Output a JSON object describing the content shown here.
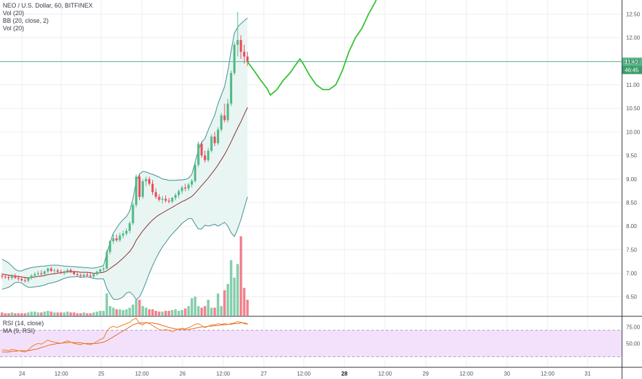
{
  "header": {
    "symbol_line": "NEO / U.S. Dollar, 60, BITFINEX",
    "indicators": [
      "Vol (20)",
      "BB (20, close, 2)",
      "Vol (20)"
    ]
  },
  "rsi_legend": [
    "RSI (14, close)",
    "MA (9, RSI)"
  ],
  "price_label": {
    "value": "11.49",
    "countdown": "46:45"
  },
  "colors": {
    "up": "#53b987",
    "down": "#eb4d5c",
    "bb": "#3d8f8f",
    "bb_fill": "#e8f5f3",
    "basis": "#8b2c2c",
    "projection": "#2fc22f",
    "price_line": "#53b987",
    "rsi": "#f07c1a",
    "rsi_ma": "#e2682b",
    "rsi_band": "#f3e1fb",
    "grid": "#eceef2"
  },
  "chart_data": {
    "type": "candlestick",
    "price_axis": {
      "ticks": [
        "12.50",
        "12.00",
        "11.50",
        "11.00",
        "10.50",
        "10.00",
        "9.50",
        "9.00",
        "8.50",
        "8.00",
        "7.50",
        "7.00",
        "6.50"
      ],
      "range": [
        6.1,
        12.8
      ]
    },
    "rsi_axis": {
      "ticks": [
        "75.00",
        "50.00"
      ],
      "band": [
        30,
        70
      ],
      "range": [
        15,
        90
      ]
    },
    "x_axis": {
      "labels": [
        "24",
        "12:00",
        "25",
        "12:00",
        "26",
        "12:00",
        "27",
        "12:00",
        "28",
        "12:00",
        "29",
        "12:00",
        "30",
        "12:00",
        "31"
      ],
      "bold": [
        "28"
      ]
    },
    "candles": [
      {
        "o": 6.95,
        "h": 7.0,
        "l": 6.88,
        "c": 6.93
      },
      {
        "o": 6.93,
        "h": 6.98,
        "l": 6.88,
        "c": 6.92
      },
      {
        "o": 6.92,
        "h": 6.97,
        "l": 6.85,
        "c": 6.9
      },
      {
        "o": 6.9,
        "h": 6.98,
        "l": 6.86,
        "c": 6.95
      },
      {
        "o": 6.95,
        "h": 6.99,
        "l": 6.88,
        "c": 6.9
      },
      {
        "o": 6.9,
        "h": 6.95,
        "l": 6.84,
        "c": 6.88
      },
      {
        "o": 6.88,
        "h": 6.93,
        "l": 6.82,
        "c": 6.85
      },
      {
        "o": 6.85,
        "h": 6.9,
        "l": 6.8,
        "c": 6.84
      },
      {
        "o": 6.84,
        "h": 6.92,
        "l": 6.8,
        "c": 6.9
      },
      {
        "o": 6.9,
        "h": 6.98,
        "l": 6.86,
        "c": 6.95
      },
      {
        "o": 6.95,
        "h": 7.02,
        "l": 6.9,
        "c": 6.98
      },
      {
        "o": 6.98,
        "h": 7.05,
        "l": 6.92,
        "c": 7.0
      },
      {
        "o": 7.0,
        "h": 7.06,
        "l": 6.95,
        "c": 6.98
      },
      {
        "o": 6.98,
        "h": 7.06,
        "l": 6.94,
        "c": 7.04
      },
      {
        "o": 7.04,
        "h": 7.12,
        "l": 7.0,
        "c": 7.1
      },
      {
        "o": 7.1,
        "h": 7.14,
        "l": 7.02,
        "c": 7.05
      },
      {
        "o": 7.05,
        "h": 7.1,
        "l": 7.0,
        "c": 7.06
      },
      {
        "o": 7.06,
        "h": 7.1,
        "l": 7.0,
        "c": 7.03
      },
      {
        "o": 7.03,
        "h": 7.08,
        "l": 6.98,
        "c": 7.0
      },
      {
        "o": 7.0,
        "h": 7.06,
        "l": 6.96,
        "c": 7.04
      },
      {
        "o": 7.04,
        "h": 7.1,
        "l": 7.0,
        "c": 7.07
      },
      {
        "o": 7.07,
        "h": 7.1,
        "l": 7.0,
        "c": 7.02
      },
      {
        "o": 7.02,
        "h": 7.06,
        "l": 6.96,
        "c": 6.98
      },
      {
        "o": 6.98,
        "h": 7.03,
        "l": 6.93,
        "c": 6.96
      },
      {
        "o": 6.96,
        "h": 7.0,
        "l": 6.9,
        "c": 6.94
      },
      {
        "o": 6.94,
        "h": 7.0,
        "l": 6.9,
        "c": 6.97
      },
      {
        "o": 6.97,
        "h": 7.02,
        "l": 6.93,
        "c": 6.95
      },
      {
        "o": 6.95,
        "h": 7.0,
        "l": 6.9,
        "c": 6.93
      },
      {
        "o": 6.93,
        "h": 7.0,
        "l": 6.9,
        "c": 6.98
      },
      {
        "o": 6.98,
        "h": 7.06,
        "l": 6.95,
        "c": 7.03
      },
      {
        "o": 7.03,
        "h": 7.1,
        "l": 7.0,
        "c": 7.08
      },
      {
        "o": 7.08,
        "h": 7.14,
        "l": 7.04,
        "c": 7.1
      },
      {
        "o": 7.1,
        "h": 7.5,
        "l": 7.08,
        "c": 7.45
      },
      {
        "o": 7.45,
        "h": 7.7,
        "l": 7.4,
        "c": 7.68
      },
      {
        "o": 7.68,
        "h": 7.82,
        "l": 7.62,
        "c": 7.74
      },
      {
        "o": 7.74,
        "h": 7.82,
        "l": 7.66,
        "c": 7.7
      },
      {
        "o": 7.7,
        "h": 7.86,
        "l": 7.66,
        "c": 7.8
      },
      {
        "o": 7.8,
        "h": 7.9,
        "l": 7.74,
        "c": 7.84
      },
      {
        "o": 7.84,
        "h": 7.95,
        "l": 7.8,
        "c": 7.9
      },
      {
        "o": 7.9,
        "h": 8.1,
        "l": 7.85,
        "c": 8.06
      },
      {
        "o": 8.06,
        "h": 8.5,
        "l": 8.02,
        "c": 8.45
      },
      {
        "o": 8.45,
        "h": 9.1,
        "l": 8.4,
        "c": 9.05
      },
      {
        "o": 9.05,
        "h": 9.12,
        "l": 8.55,
        "c": 8.62
      },
      {
        "o": 8.62,
        "h": 9.0,
        "l": 8.58,
        "c": 8.95
      },
      {
        "o": 8.95,
        "h": 9.05,
        "l": 8.85,
        "c": 9.0
      },
      {
        "o": 9.0,
        "h": 9.05,
        "l": 8.86,
        "c": 8.9
      },
      {
        "o": 8.9,
        "h": 8.98,
        "l": 8.66,
        "c": 8.72
      },
      {
        "o": 8.72,
        "h": 8.8,
        "l": 8.58,
        "c": 8.62
      },
      {
        "o": 8.62,
        "h": 8.68,
        "l": 8.52,
        "c": 8.56
      },
      {
        "o": 8.56,
        "h": 8.64,
        "l": 8.48,
        "c": 8.58
      },
      {
        "o": 8.58,
        "h": 8.65,
        "l": 8.5,
        "c": 8.54
      },
      {
        "o": 8.54,
        "h": 8.6,
        "l": 8.48,
        "c": 8.52
      },
      {
        "o": 8.52,
        "h": 8.62,
        "l": 8.48,
        "c": 8.6
      },
      {
        "o": 8.6,
        "h": 8.7,
        "l": 8.55,
        "c": 8.66
      },
      {
        "o": 8.66,
        "h": 8.78,
        "l": 8.6,
        "c": 8.74
      },
      {
        "o": 8.74,
        "h": 8.86,
        "l": 8.68,
        "c": 8.82
      },
      {
        "o": 8.82,
        "h": 8.9,
        "l": 8.74,
        "c": 8.8
      },
      {
        "o": 8.8,
        "h": 8.92,
        "l": 8.75,
        "c": 8.88
      },
      {
        "o": 8.88,
        "h": 9.0,
        "l": 8.82,
        "c": 8.96
      },
      {
        "o": 8.96,
        "h": 9.35,
        "l": 8.92,
        "c": 9.3
      },
      {
        "o": 9.3,
        "h": 9.8,
        "l": 9.25,
        "c": 9.75
      },
      {
        "o": 9.75,
        "h": 9.8,
        "l": 9.45,
        "c": 9.5
      },
      {
        "o": 9.5,
        "h": 9.6,
        "l": 9.35,
        "c": 9.4
      },
      {
        "o": 9.4,
        "h": 9.66,
        "l": 9.36,
        "c": 9.6
      },
      {
        "o": 9.6,
        "h": 9.95,
        "l": 9.56,
        "c": 9.9
      },
      {
        "o": 9.9,
        "h": 10.0,
        "l": 9.7,
        "c": 9.76
      },
      {
        "o": 9.76,
        "h": 10.1,
        "l": 9.72,
        "c": 10.05
      },
      {
        "o": 10.05,
        "h": 10.4,
        "l": 10.0,
        "c": 10.35
      },
      {
        "o": 10.35,
        "h": 10.6,
        "l": 10.2,
        "c": 10.25
      },
      {
        "o": 10.25,
        "h": 10.7,
        "l": 10.2,
        "c": 10.6
      },
      {
        "o": 10.6,
        "h": 11.3,
        "l": 10.55,
        "c": 11.25
      },
      {
        "o": 11.25,
        "h": 11.9,
        "l": 11.2,
        "c": 11.85
      },
      {
        "o": 11.85,
        "h": 12.55,
        "l": 11.6,
        "c": 11.95
      },
      {
        "o": 11.95,
        "h": 12.05,
        "l": 11.55,
        "c": 11.7
      },
      {
        "o": 11.7,
        "h": 11.85,
        "l": 11.45,
        "c": 11.6
      },
      {
        "o": 11.6,
        "h": 11.7,
        "l": 11.4,
        "c": 11.49
      }
    ],
    "volume": [
      0.04,
      0.03,
      0.03,
      0.04,
      0.03,
      0.03,
      0.03,
      0.03,
      0.04,
      0.05,
      0.05,
      0.04,
      0.04,
      0.05,
      0.06,
      0.05,
      0.04,
      0.04,
      0.04,
      0.04,
      0.05,
      0.04,
      0.04,
      0.03,
      0.03,
      0.04,
      0.03,
      0.03,
      0.04,
      0.05,
      0.06,
      0.06,
      0.28,
      0.12,
      0.1,
      0.08,
      0.08,
      0.07,
      0.08,
      0.1,
      0.14,
      0.2,
      0.2,
      0.12,
      0.1,
      0.08,
      0.08,
      0.06,
      0.05,
      0.05,
      0.06,
      0.06,
      0.07,
      0.08,
      0.06,
      0.07,
      0.09,
      0.12,
      0.22,
      0.24,
      0.12,
      0.1,
      0.12,
      0.2,
      0.1,
      0.1,
      0.28,
      0.12,
      0.32,
      0.4,
      0.7,
      0.48,
      0.65,
      1.0,
      0.35,
      0.2
    ],
    "bollinger_upper": [
      7.3,
      7.26,
      7.22,
      7.15,
      7.08,
      7.05,
      7.05,
      7.08,
      7.1,
      7.12,
      7.13,
      7.14,
      7.15,
      7.15,
      7.16,
      7.17,
      7.17,
      7.17,
      7.16,
      7.15,
      7.15,
      7.14,
      7.14,
      7.13,
      7.13,
      7.12,
      7.12,
      7.11,
      7.11,
      7.12,
      7.14,
      7.16,
      7.42,
      7.65,
      7.85,
      7.96,
      8.06,
      8.14,
      8.2,
      8.32,
      8.58,
      8.96,
      9.1,
      9.16,
      9.15,
      9.12,
      9.1,
      9.07,
      9.04,
      9.0,
      8.99,
      8.97,
      8.97,
      8.97,
      8.98,
      8.98,
      8.99,
      9.02,
      9.1,
      9.36,
      9.62,
      9.78,
      9.86,
      10.04,
      10.2,
      10.36,
      10.6,
      10.78,
      10.96,
      11.3,
      11.72,
      12.1,
      12.22,
      12.3,
      12.36,
      12.42
    ],
    "bollinger_basis": [
      6.98,
      6.97,
      6.96,
      6.95,
      6.94,
      6.93,
      6.92,
      6.91,
      6.9,
      6.91,
      6.92,
      6.93,
      6.94,
      6.95,
      6.97,
      6.98,
      6.99,
      7.0,
      7.01,
      7.02,
      7.03,
      7.03,
      7.03,
      7.03,
      7.02,
      7.02,
      7.02,
      7.01,
      7.0,
      7.0,
      7.01,
      7.02,
      7.05,
      7.1,
      7.15,
      7.2,
      7.26,
      7.32,
      7.39,
      7.46,
      7.56,
      7.7,
      7.8,
      7.9,
      7.98,
      8.06,
      8.13,
      8.19,
      8.24,
      8.28,
      8.32,
      8.36,
      8.4,
      8.44,
      8.48,
      8.52,
      8.55,
      8.59,
      8.63,
      8.7,
      8.78,
      8.86,
      8.94,
      9.02,
      9.11,
      9.2,
      9.3,
      9.41,
      9.52,
      9.65,
      9.79,
      9.94,
      10.08,
      10.22,
      10.37,
      10.52
    ],
    "bollinger_lower": [
      6.66,
      6.68,
      6.7,
      6.75,
      6.8,
      6.81,
      6.79,
      6.74,
      6.7,
      6.7,
      6.71,
      6.72,
      6.73,
      6.75,
      6.78,
      6.79,
      6.81,
      6.83,
      6.86,
      6.89,
      6.91,
      6.92,
      6.92,
      6.93,
      6.91,
      6.92,
      6.92,
      6.91,
      6.89,
      6.88,
      6.88,
      6.88,
      6.68,
      6.55,
      6.45,
      6.44,
      6.46,
      6.5,
      6.58,
      6.6,
      6.54,
      6.44,
      6.5,
      6.64,
      6.81,
      7.0,
      7.16,
      7.31,
      7.44,
      7.56,
      7.65,
      7.75,
      7.83,
      7.91,
      7.98,
      8.06,
      8.11,
      8.16,
      8.16,
      8.04,
      7.94,
      7.94,
      8.02,
      8.0,
      8.02,
      8.04,
      8.0,
      8.04,
      8.08,
      8.0,
      7.86,
      7.78,
      7.94,
      8.14,
      8.38,
      8.62
    ],
    "rsi": [
      40,
      40,
      39,
      41,
      40,
      39,
      38,
      37,
      40,
      45,
      48,
      50,
      49,
      52,
      55,
      53,
      52,
      51,
      50,
      52,
      54,
      52,
      50,
      49,
      48,
      50,
      49,
      48,
      50,
      53,
      56,
      58,
      68,
      74,
      76,
      74,
      76,
      78,
      80,
      82,
      86,
      88,
      80,
      78,
      82,
      80,
      77,
      74,
      71,
      70,
      71,
      70,
      68,
      70,
      72,
      73,
      72,
      74,
      76,
      79,
      80,
      77,
      74,
      76,
      78,
      78,
      80,
      79,
      80,
      79,
      80,
      81,
      83,
      82,
      80,
      79
    ],
    "rsi_ma": [
      37,
      37,
      37,
      38,
      38,
      39,
      39,
      39,
      39,
      40,
      41,
      42,
      44,
      45,
      47,
      48,
      49,
      50,
      50,
      51,
      51,
      52,
      51,
      51,
      51,
      50,
      50,
      50,
      50,
      50,
      51,
      52,
      54,
      57,
      60,
      63,
      66,
      69,
      72,
      75,
      78,
      80,
      81,
      81,
      81,
      81,
      81,
      80,
      79,
      77,
      76,
      74,
      73,
      72,
      71,
      71,
      71,
      71,
      72,
      73,
      74,
      75,
      75,
      76,
      76,
      77,
      77,
      78,
      78,
      79,
      79,
      80,
      80,
      81,
      81,
      80
    ],
    "projection": [
      [
        11.49,
        0
      ],
      [
        11.3,
        2
      ],
      [
        11.1,
        4
      ],
      [
        10.92,
        6
      ],
      [
        10.78,
        7
      ],
      [
        10.9,
        9
      ],
      [
        11.1,
        11
      ],
      [
        11.25,
        13
      ],
      [
        11.45,
        15
      ],
      [
        11.55,
        16
      ],
      [
        11.45,
        17
      ],
      [
        11.2,
        19
      ],
      [
        11.0,
        21
      ],
      [
        10.9,
        23
      ],
      [
        10.9,
        25
      ],
      [
        11.0,
        27
      ],
      [
        11.3,
        29
      ],
      [
        11.7,
        31
      ],
      [
        12.0,
        33
      ],
      [
        12.2,
        35
      ],
      [
        12.5,
        37
      ],
      [
        12.75,
        39
      ],
      [
        12.9,
        40
      ]
    ],
    "current_price": 11.49
  }
}
